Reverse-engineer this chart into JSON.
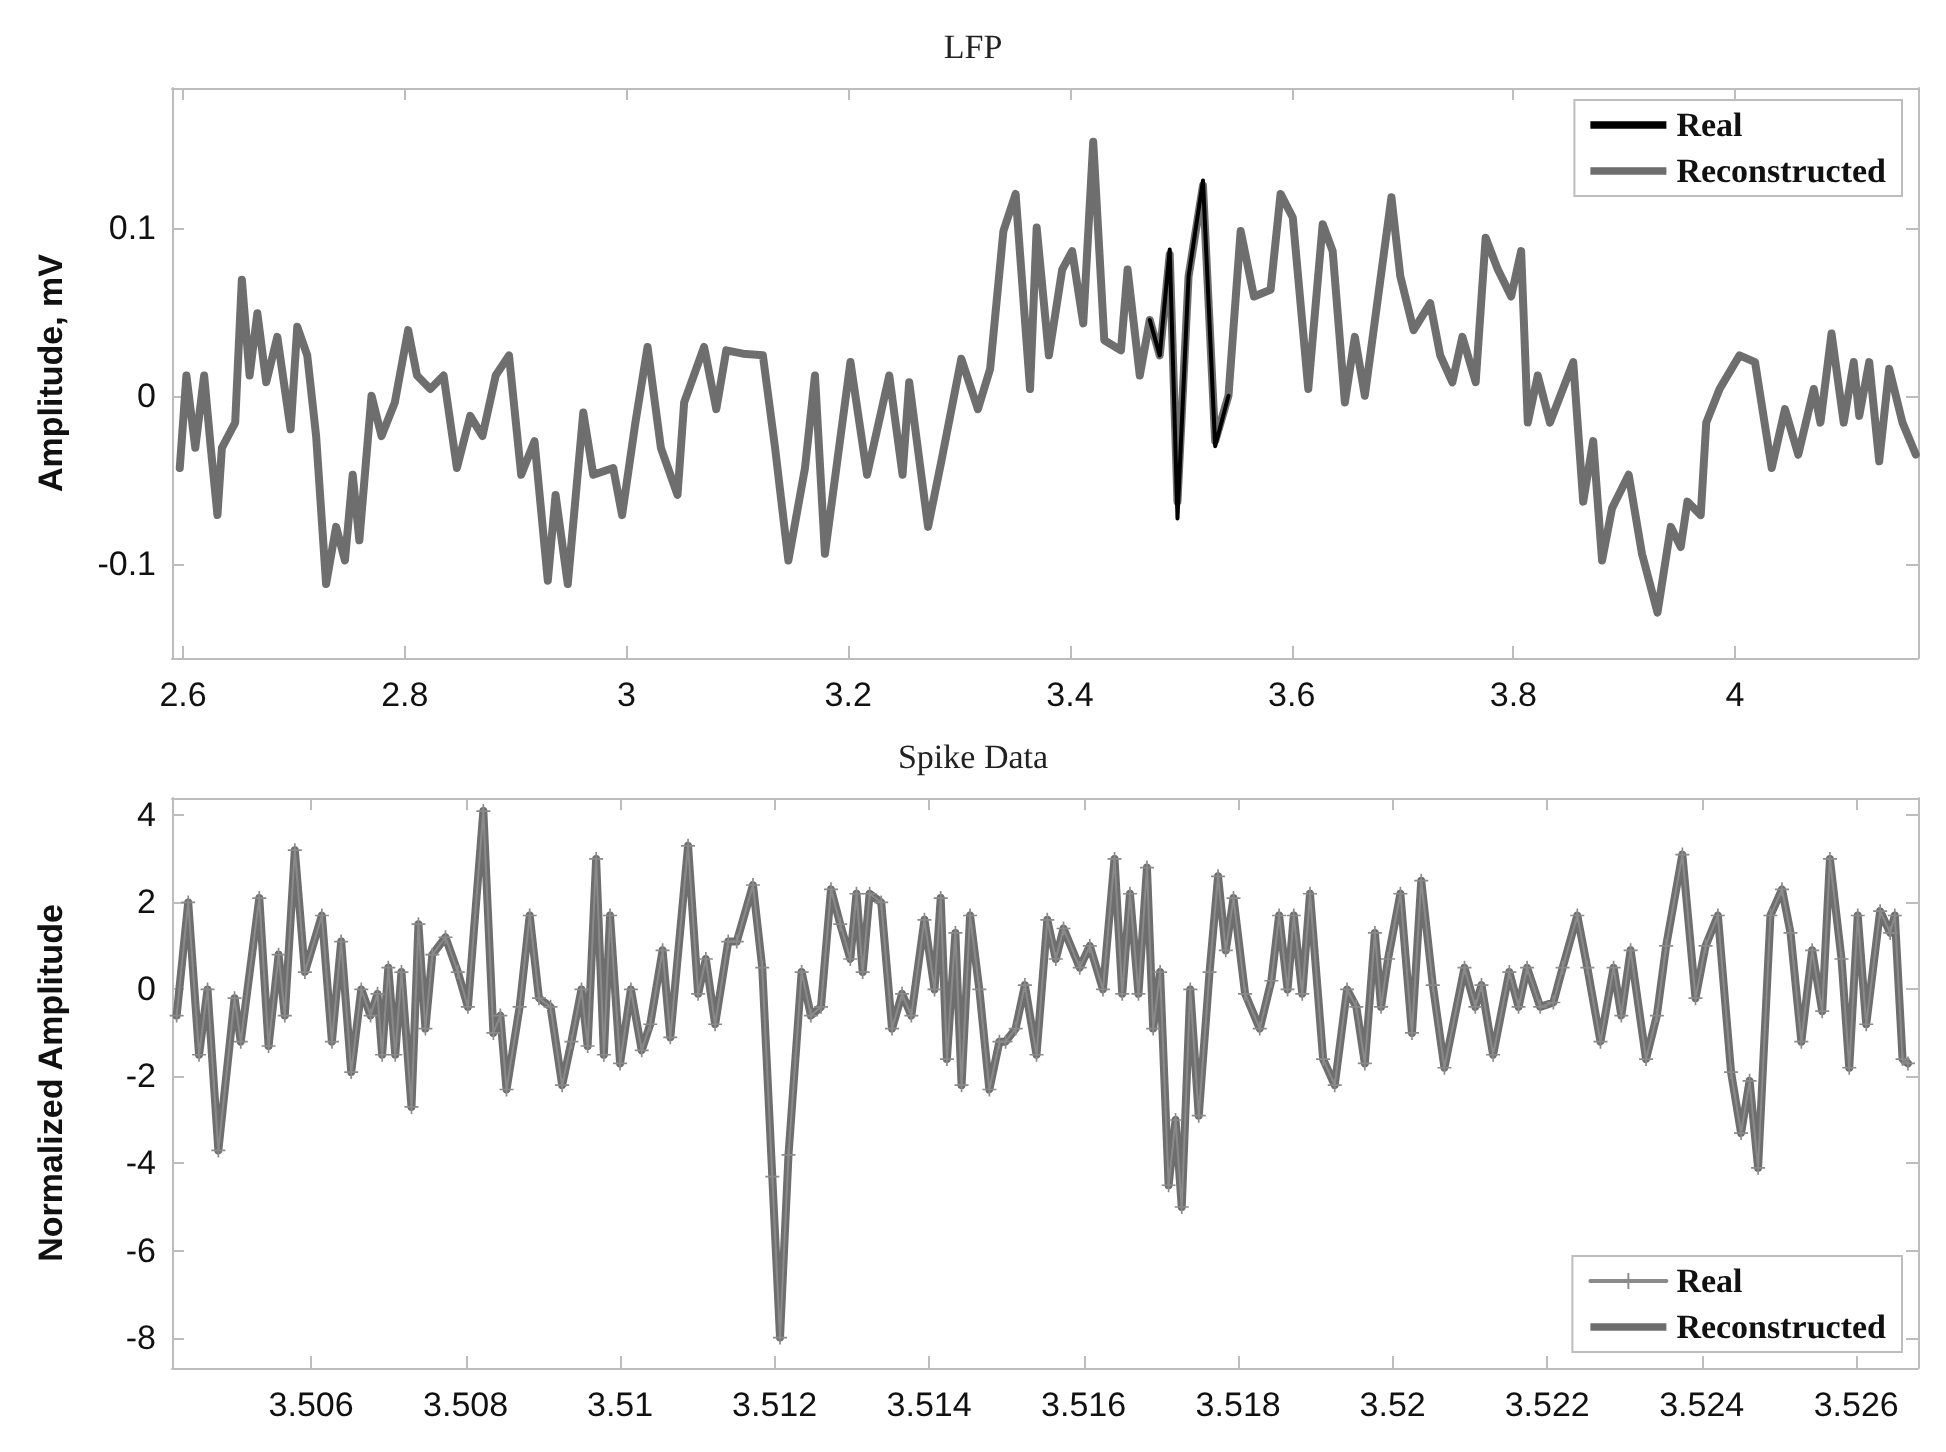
{
  "chart_data": [
    {
      "type": "line",
      "title": "LFP",
      "ylabel": "Amplitude, mV",
      "xlim": [
        2.59,
        4.165
      ],
      "ylim": [
        -0.156,
        0.183
      ],
      "xticks": [
        2.6,
        2.8,
        3,
        3.2,
        3.4,
        3.6,
        3.8,
        4
      ],
      "yticks": [
        -0.1,
        0,
        0.1
      ],
      "grid": false,
      "legend": "top right",
      "line_style": "solid",
      "series": [
        {
          "name": "Real",
          "color": "#000000",
          "marker": "none",
          "x": [
            3.472,
            3.481,
            3.49,
            3.497,
            3.507,
            3.52,
            3.531,
            3.543
          ],
          "values": [
            0.045,
            0.024,
            0.087,
            -0.073,
            0.071,
            0.128,
            -0.03,
            0
          ]
        },
        {
          "name": "Reconstructed",
          "color": "#6e6e6e",
          "marker": "none",
          "x": [
            2.597,
            2.603,
            2.611,
            2.619,
            2.625,
            2.631,
            2.635,
            2.647,
            2.653,
            2.66,
            2.667,
            2.675,
            2.685,
            2.697,
            2.703,
            2.712,
            2.72,
            2.729,
            2.738,
            2.746,
            2.753,
            2.759,
            2.77,
            2.779,
            2.791,
            2.803,
            2.811,
            2.823,
            2.835,
            2.847,
            2.859,
            2.87,
            2.882,
            2.894,
            2.905,
            2.917,
            2.929,
            2.936,
            2.947,
            2.961,
            2.97,
            2.988,
            2.996,
            3.008,
            3.019,
            3.031,
            3.046,
            3.052,
            3.07,
            3.081,
            3.09,
            3.105,
            3.123,
            3.134,
            3.146,
            3.161,
            3.17,
            3.179,
            3.202,
            3.217,
            3.237,
            3.249,
            3.255,
            3.272,
            3.284,
            3.302,
            3.317,
            3.328,
            3.34,
            3.351,
            3.364,
            3.37,
            3.381,
            3.393,
            3.402,
            3.412,
            3.421,
            3.431,
            3.446,
            3.452,
            3.463,
            3.472,
            3.481,
            3.49,
            3.497,
            3.507,
            3.52,
            3.531,
            3.543,
            3.554,
            3.566,
            3.581,
            3.59,
            3.601,
            3.615,
            3.628,
            3.637,
            3.648,
            3.657,
            3.666,
            3.69,
            3.698,
            3.71,
            3.725,
            3.734,
            3.745,
            3.754,
            3.766,
            3.775,
            3.786,
            3.798,
            3.807,
            3.813,
            3.822,
            3.833,
            3.854,
            3.863,
            3.872,
            3.88,
            3.889,
            3.904,
            3.916,
            3.93,
            3.942,
            3.951,
            3.957,
            3.969,
            3.974,
            3.986,
            4.004,
            4.018,
            4.033,
            4.045,
            4.057,
            4.071,
            4.077,
            4.087,
            4.098,
            4.107,
            4.112,
            4.121,
            4.13,
            4.139,
            4.151,
            4.163
          ],
          "values": [
            -0.043,
            0.012,
            -0.031,
            0.012,
            -0.031,
            -0.071,
            -0.031,
            -0.016,
            0.069,
            0.012,
            0.049,
            0.008,
            0.035,
            -0.02,
            0.041,
            0.024,
            -0.024,
            -0.112,
            -0.078,
            -0.098,
            -0.047,
            -0.086,
            0,
            -0.024,
            -0.004,
            0.039,
            0.012,
            0.004,
            0.012,
            -0.043,
            -0.012,
            -0.024,
            0.012,
            0.024,
            -0.047,
            -0.027,
            -0.11,
            -0.059,
            -0.112,
            -0.01,
            -0.047,
            -0.043,
            -0.071,
            -0.016,
            0.029,
            -0.031,
            -0.059,
            -0.004,
            0.029,
            -0.008,
            0.027,
            0.025,
            0.024,
            -0.031,
            -0.098,
            -0.043,
            0.012,
            -0.094,
            0.02,
            -0.047,
            0.012,
            -0.047,
            0.008,
            -0.078,
            -0.039,
            0.022,
            -0.008,
            0.016,
            0.098,
            0.12,
            0.004,
            0.1,
            0.024,
            0.075,
            0.086,
            0.043,
            0.151,
            0.033,
            0.027,
            0.075,
            0.012,
            0.045,
            0.024,
            0.084,
            -0.063,
            0.071,
            0.125,
            -0.027,
            0,
            0.098,
            0.059,
            0.063,
            0.12,
            0.106,
            0.004,
            0.102,
            0.086,
            -0.004,
            0.035,
            0,
            0.118,
            0.071,
            0.039,
            0.055,
            0.024,
            0.008,
            0.035,
            0.008,
            0.094,
            0.075,
            0.059,
            0.086,
            -0.016,
            0.012,
            -0.016,
            0.02,
            -0.063,
            -0.027,
            -0.098,
            -0.067,
            -0.047,
            -0.094,
            -0.129,
            -0.078,
            -0.09,
            -0.063,
            -0.071,
            -0.016,
            0.004,
            0.024,
            0.02,
            -0.043,
            -0.008,
            -0.035,
            0.004,
            -0.016,
            0.037,
            -0.016,
            0.02,
            -0.012,
            0.02,
            -0.039,
            0.016,
            -0.016,
            -0.035
          ]
        }
      ]
    },
    {
      "type": "line",
      "title": "Spike Data",
      "ylabel": "Normalized Amplitude",
      "xlim": [
        3.5042,
        3.5268
      ],
      "ylim": [
        -8.7,
        4.4
      ],
      "xticks": [
        3.506,
        3.508,
        3.51,
        3.512,
        3.514,
        3.516,
        3.518,
        3.52,
        3.522,
        3.524,
        3.526
      ],
      "yticks": [
        -8,
        -6,
        -4,
        -2,
        0,
        2,
        4
      ],
      "grid": false,
      "legend": "bottom right",
      "line_style": "solid",
      "x": [
        3.50426,
        3.50441,
        3.50455,
        3.50466,
        3.5048,
        3.50501,
        3.50509,
        3.50533,
        3.50545,
        3.50558,
        3.50566,
        3.50579,
        3.50592,
        3.50614,
        3.50627,
        3.50639,
        3.50652,
        3.50665,
        3.50677,
        3.50686,
        3.50692,
        3.507,
        3.50709,
        3.50717,
        3.5073,
        3.50739,
        3.50748,
        3.50757,
        3.50774,
        3.5079,
        3.50803,
        3.50823,
        3.50836,
        3.50845,
        3.50853,
        3.5087,
        3.50883,
        3.50895,
        3.5091,
        3.50925,
        3.50937,
        3.5095,
        3.50958,
        3.50969,
        3.50979,
        3.50987,
        3.51,
        3.51014,
        3.51028,
        3.51039,
        3.51055,
        3.51065,
        3.51088,
        3.51101,
        3.51111,
        3.51123,
        3.5114,
        3.51151,
        3.51172,
        3.51184,
        3.51197,
        3.51207,
        3.51218,
        3.51235,
        3.51247,
        3.5126,
        3.51273,
        3.51285,
        3.51298,
        3.51306,
        3.51314,
        3.51323,
        3.51338,
        3.51352,
        3.51365,
        3.51377,
        3.51394,
        3.51407,
        3.51415,
        3.51423,
        3.51434,
        3.51442,
        3.51453,
        3.51465,
        3.51478,
        3.51491,
        3.51499,
        3.51512,
        3.51524,
        3.51539,
        3.51553,
        3.51564,
        3.51574,
        3.51595,
        3.51608,
        3.51625,
        3.5164,
        3.5165,
        3.5166,
        3.51671,
        3.51682,
        3.5169,
        3.51699,
        3.5171,
        3.51719,
        3.51727,
        3.51738,
        3.51749,
        3.51763,
        3.51774,
        3.51784,
        3.51794,
        3.51809,
        3.51828,
        3.51843,
        3.51853,
        3.51864,
        3.51872,
        3.51883,
        3.51893,
        3.5191,
        3.51925,
        3.51941,
        3.51953,
        3.51964,
        3.51977,
        3.51985,
        3.51994,
        3.5201,
        3.52025,
        3.52037,
        3.52052,
        3.52067,
        3.52093,
        3.52107,
        3.52115,
        3.5213,
        3.52151,
        3.52163,
        3.52174,
        3.52191,
        3.52208,
        3.5222,
        3.52239,
        3.52252,
        3.52269,
        3.52286,
        3.52296,
        3.52308,
        3.52328,
        3.52342,
        3.52354,
        3.52375,
        3.52392,
        3.52405,
        3.52421,
        3.52438,
        3.52451,
        3.52462,
        3.52473,
        3.52489,
        3.52504,
        3.52515,
        3.52529,
        3.52543,
        3.52556,
        3.52566,
        3.52581,
        3.52591,
        3.52602,
        3.52613,
        3.52631,
        3.52644,
        3.5265,
        3.5266,
        3.52667
      ],
      "series": [
        {
          "name": "Real",
          "color": "#8a8a8a",
          "marker": "cross",
          "values": [
            -0.6,
            2.0,
            -1.5,
            0.0,
            -3.7,
            -0.2,
            -1.2,
            2.1,
            -1.3,
            0.8,
            -0.6,
            3.2,
            0.4,
            1.7,
            -1.2,
            1.1,
            -1.9,
            0.0,
            -0.6,
            -0.1,
            -1.5,
            0.5,
            -1.5,
            0.4,
            -2.7,
            1.5,
            -0.9,
            0.8,
            1.2,
            0.4,
            -0.4,
            4.1,
            -1.0,
            -0.6,
            -2.3,
            -0.4,
            1.7,
            -0.2,
            -0.4,
            -2.2,
            -1.2,
            0.0,
            -1.3,
            3.0,
            -1.5,
            1.7,
            -1.7,
            0.0,
            -1.4,
            -0.8,
            0.9,
            -1.1,
            3.3,
            -0.1,
            0.7,
            -0.8,
            1.1,
            1.1,
            2.4,
            0.5,
            -4.3,
            -8.0,
            -3.8,
            0.4,
            -0.6,
            -0.4,
            2.3,
            1.5,
            0.7,
            2.2,
            0.4,
            2.2,
            2.0,
            -0.9,
            -0.1,
            -0.6,
            1.6,
            0.0,
            2.1,
            -1.6,
            1.3,
            -2.2,
            1.7,
            0.0,
            -2.3,
            -1.2,
            -1.2,
            -0.9,
            0.1,
            -1.5,
            1.6,
            0.7,
            1.4,
            0.5,
            1.0,
            0.0,
            3.0,
            -0.1,
            2.2,
            -0.1,
            2.8,
            -0.9,
            0.4,
            -4.5,
            -3.0,
            -5.0,
            0.0,
            -2.9,
            0.4,
            2.6,
            0.9,
            2.1,
            -0.1,
            -0.9,
            0.2,
            1.7,
            0.0,
            1.7,
            -0.1,
            2.2,
            -1.6,
            -2.2,
            0.0,
            -0.4,
            -1.7,
            1.3,
            -0.4,
            0.7,
            2.2,
            -1.0,
            2.5,
            0.1,
            -1.8,
            0.5,
            -0.4,
            0.1,
            -1.5,
            0.4,
            -0.4,
            0.5,
            -0.4,
            -0.3,
            0.5,
            1.7,
            0.5,
            -1.2,
            0.5,
            -0.6,
            0.9,
            -1.6,
            -0.6,
            1.0,
            3.1,
            -0.2,
            1.0,
            1.7,
            -1.9,
            -3.3,
            -2.1,
            -4.1,
            1.7,
            2.3,
            1.3,
            -1.2,
            0.9,
            -0.5,
            3.0,
            0.7,
            -1.8,
            1.7,
            -0.8,
            1.8,
            1.3,
            1.7,
            -1.6,
            -1.7
          ]
        },
        {
          "name": "Reconstructed",
          "color": "#6e6e6e",
          "marker": "none",
          "values": [
            -0.6,
            2.0,
            -1.5,
            0.0,
            -3.7,
            -0.2,
            -1.2,
            2.1,
            -1.3,
            0.8,
            -0.6,
            3.2,
            0.4,
            1.7,
            -1.2,
            1.1,
            -1.9,
            0.0,
            -0.6,
            -0.1,
            -1.5,
            0.5,
            -1.5,
            0.4,
            -2.7,
            1.5,
            -0.9,
            0.8,
            1.2,
            0.4,
            -0.4,
            4.1,
            -1.0,
            -0.6,
            -2.3,
            -0.4,
            1.7,
            -0.2,
            -0.4,
            -2.2,
            -1.2,
            0.0,
            -1.3,
            3.0,
            -1.5,
            1.7,
            -1.7,
            0.0,
            -1.4,
            -0.8,
            0.9,
            -1.1,
            3.3,
            -0.1,
            0.7,
            -0.8,
            1.1,
            1.1,
            2.4,
            0.5,
            -4.3,
            -8.0,
            -3.8,
            0.4,
            -0.6,
            -0.4,
            2.3,
            1.5,
            0.7,
            2.2,
            0.4,
            2.2,
            2.0,
            -0.9,
            -0.1,
            -0.6,
            1.6,
            0.0,
            2.1,
            -1.6,
            1.3,
            -2.2,
            1.7,
            0.0,
            -2.3,
            -1.2,
            -1.2,
            -0.9,
            0.1,
            -1.5,
            1.6,
            0.7,
            1.4,
            0.5,
            1.0,
            0.0,
            3.0,
            -0.1,
            2.2,
            -0.1,
            2.8,
            -0.9,
            0.4,
            -4.5,
            -3.0,
            -5.0,
            0.0,
            -2.9,
            0.4,
            2.6,
            0.9,
            2.1,
            -0.1,
            -0.9,
            0.2,
            1.7,
            0.0,
            1.7,
            -0.1,
            2.2,
            -1.6,
            -2.2,
            0.0,
            -0.4,
            -1.7,
            1.3,
            -0.4,
            0.7,
            2.2,
            -1.0,
            2.5,
            0.1,
            -1.8,
            0.5,
            -0.4,
            0.1,
            -1.5,
            0.4,
            -0.4,
            0.5,
            -0.4,
            -0.3,
            0.5,
            1.7,
            0.5,
            -1.2,
            0.5,
            -0.6,
            0.9,
            -1.6,
            -0.6,
            1.0,
            3.1,
            -0.2,
            1.0,
            1.7,
            -1.9,
            -3.3,
            -2.1,
            -4.1,
            1.7,
            2.3,
            1.3,
            -1.2,
            0.9,
            -0.5,
            3.0,
            0.7,
            -1.8,
            1.7,
            -0.8,
            1.8,
            1.3,
            1.7,
            -1.6,
            -1.7
          ]
        }
      ]
    }
  ]
}
